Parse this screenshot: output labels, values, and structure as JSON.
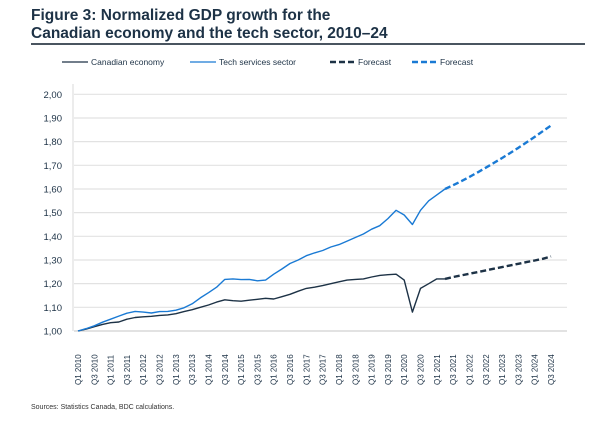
{
  "title_line1": "Figure 3: Normalized GDP growth for the",
  "title_line2": "Canadian economy and the tech sector, 2010–24",
  "source": "Sources: Statistics Canada, BDC calculations.",
  "chart_data": {
    "type": "line",
    "title": "Figure 3: Normalized GDP growth for the Canadian economy and the tech sector, 2010–24",
    "xlabel": "",
    "ylabel": "",
    "ylim": [
      1.0,
      2.0
    ],
    "yticks": [
      "1,00",
      "1,10",
      "1,20",
      "1,30",
      "1,40",
      "1,50",
      "1,60",
      "1,70",
      "1,80",
      "1,90",
      "2,00"
    ],
    "grid": "horizontal",
    "legend_position": "top",
    "x_first": "Q1 2010",
    "x_last": "Q3 2024",
    "xtick_labels": [
      "Q1 2010",
      "Q3 2010",
      "Q1 2011",
      "Q3 2011",
      "Q1 2012",
      "Q3 2012",
      "Q1 2013",
      "Q3 2013",
      "Q1 2014",
      "Q3 2014",
      "Q1 2015",
      "Q3 2015",
      "Q1 2016",
      "Q3 2016",
      "Q1 2017",
      "Q3 2017",
      "Q1 2018",
      "Q3 2018",
      "Q1 2019",
      "Q3 2019",
      "Q1 2020",
      "Q3 2020",
      "Q1 2021",
      "Q3 2021",
      "Q1 2022",
      "Q3 2022",
      "Q1 2023",
      "Q3 2023",
      "Q1 2024",
      "Q3 2024"
    ],
    "series": [
      {
        "name": "Canadian economy",
        "color": "#1d3246",
        "style": "solid",
        "start": "Q1 2010",
        "values": [
          1.0,
          1.008,
          1.018,
          1.028,
          1.035,
          1.038,
          1.05,
          1.057,
          1.06,
          1.062,
          1.066,
          1.068,
          1.073,
          1.082,
          1.09,
          1.1,
          1.11,
          1.122,
          1.132,
          1.128,
          1.126,
          1.13,
          1.134,
          1.138,
          1.135,
          1.145,
          1.155,
          1.168,
          1.18,
          1.185,
          1.192,
          1.2,
          1.208,
          1.215,
          1.218,
          1.22,
          1.228,
          1.235,
          1.238,
          1.24,
          1.215,
          1.08,
          1.18,
          1.2,
          1.22,
          1.22
        ]
      },
      {
        "name": "Tech services sector",
        "color": "#1a7ad4",
        "style": "solid",
        "start": "Q1 2010",
        "values": [
          1.0,
          1.01,
          1.022,
          1.037,
          1.05,
          1.063,
          1.075,
          1.083,
          1.08,
          1.076,
          1.082,
          1.083,
          1.088,
          1.098,
          1.115,
          1.14,
          1.162,
          1.185,
          1.218,
          1.22,
          1.217,
          1.218,
          1.212,
          1.215,
          1.24,
          1.262,
          1.285,
          1.3,
          1.318,
          1.33,
          1.34,
          1.355,
          1.365,
          1.38,
          1.395,
          1.41,
          1.43,
          1.445,
          1.475,
          1.51,
          1.49,
          1.45,
          1.51,
          1.55,
          1.575,
          1.6
        ]
      },
      {
        "name": "Forecast",
        "color": "#1d3246",
        "style": "dashed",
        "start": "Q2 2021",
        "values": [
          1.22,
          1.228,
          1.235,
          1.242,
          1.249,
          1.256,
          1.263,
          1.27,
          1.277,
          1.284,
          1.291,
          1.298,
          1.305,
          1.315
        ]
      },
      {
        "name": "Forecast",
        "color": "#1a7ad4",
        "style": "dashed",
        "start": "Q2 2021",
        "values": [
          1.6,
          1.616,
          1.633,
          1.651,
          1.67,
          1.69,
          1.71,
          1.731,
          1.752,
          1.774,
          1.797,
          1.82,
          1.844,
          1.868
        ]
      }
    ]
  }
}
